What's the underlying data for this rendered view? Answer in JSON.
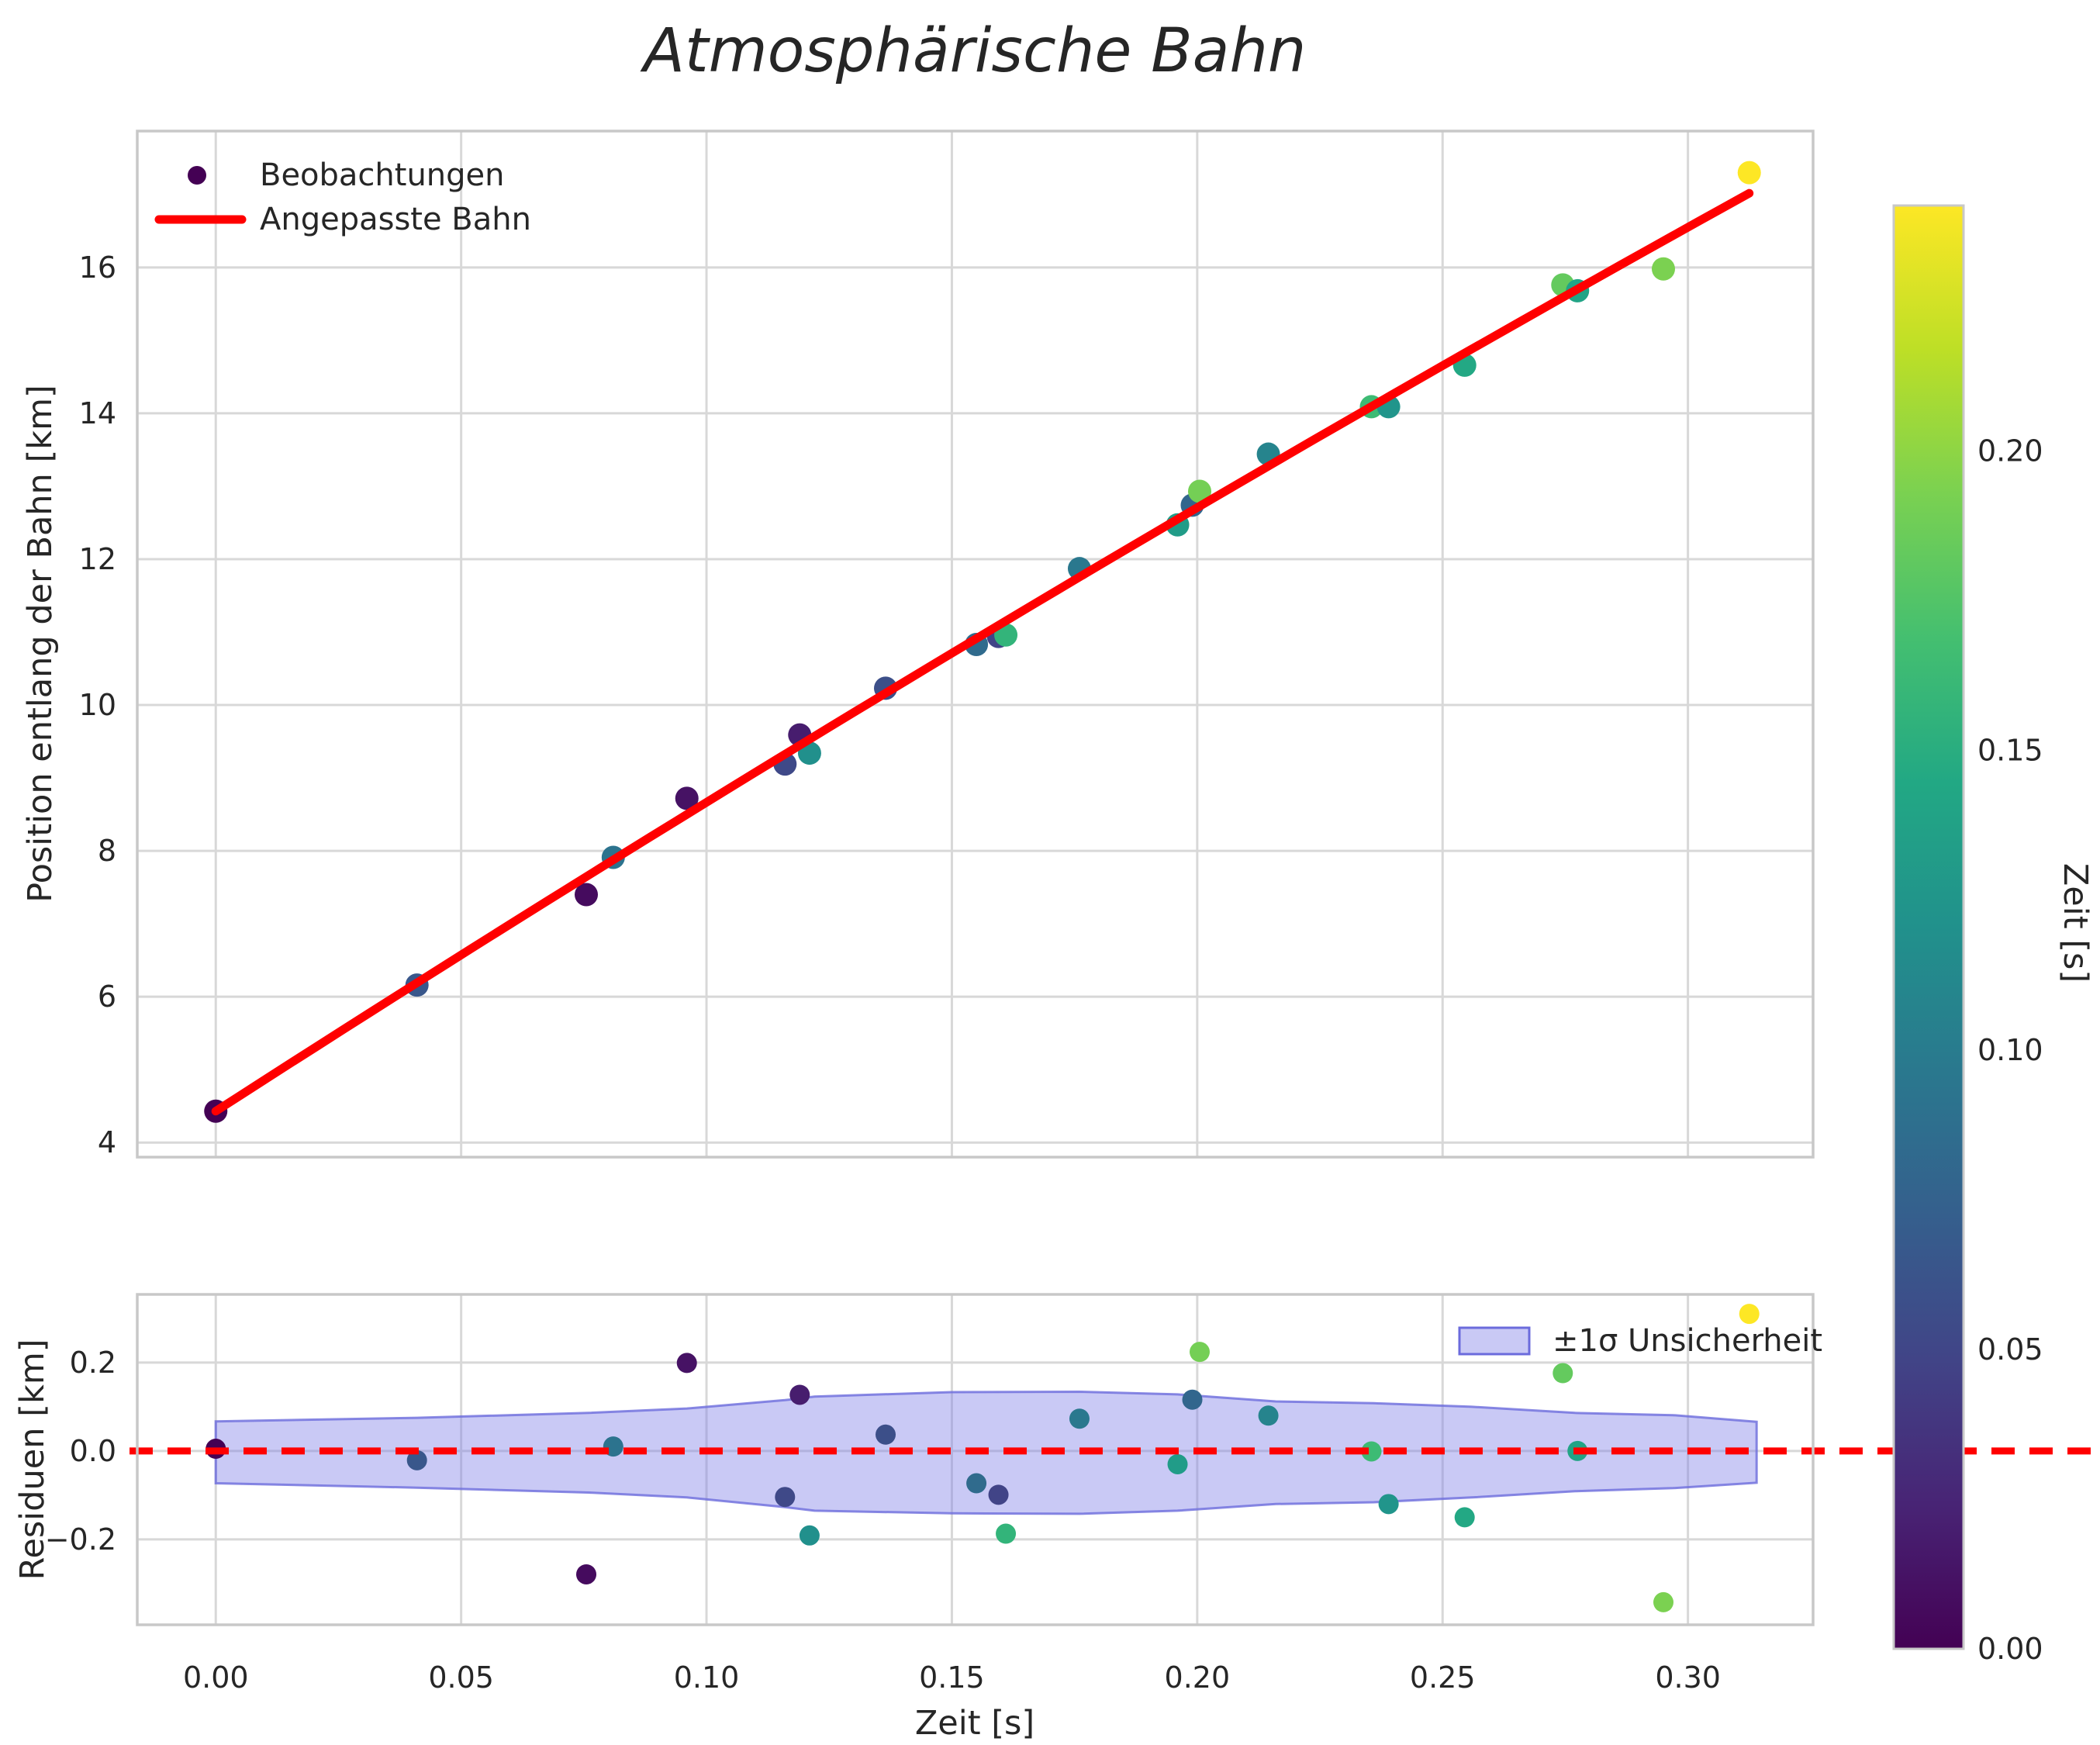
{
  "chart_data": {
    "type": "scatter",
    "title": "Atmosphärische Bahn",
    "colors": {
      "fit_line": "#ff0000",
      "zero_line": "#ff0000",
      "band_fill": "#7f7fe8",
      "band_edge": "#6b6bdc",
      "grid": "#d8d8d8",
      "spine": "#c8c8c8",
      "text": "#262626",
      "background": "#ffffff"
    },
    "viridis_stops": [
      [
        0.0,
        "#440154"
      ],
      [
        0.1,
        "#482475"
      ],
      [
        0.2,
        "#414487"
      ],
      [
        0.3,
        "#355f8d"
      ],
      [
        0.4,
        "#2a788e"
      ],
      [
        0.5,
        "#21918c"
      ],
      [
        0.6,
        "#22a884"
      ],
      [
        0.7,
        "#44bf70"
      ],
      [
        0.8,
        "#7ad151"
      ],
      [
        0.9,
        "#bddf26"
      ],
      [
        1.0,
        "#fde725"
      ]
    ],
    "main": {
      "ylabel": "Position entlang der Bahn [km]",
      "legend": {
        "observations": "Beobachtungen",
        "fit": "Angepasste Bahn"
      },
      "xlim": [
        -0.016,
        0.3255
      ],
      "ylim": [
        3.8,
        17.87
      ],
      "yticks": [
        4,
        6,
        8,
        10,
        12,
        14,
        16
      ],
      "fit": {
        "a": 4.43,
        "b": 43.33,
        "c": -9.76,
        "t_start": 0.0,
        "t_end": 0.3125
      }
    },
    "residuals": {
      "ylabel": "Residuen [km]",
      "xlabel": "Zeit [s]",
      "legend": "±1σ Unsicherheit",
      "ylim": [
        -0.393,
        0.354
      ],
      "yticks": [
        {
          "value": 0.2,
          "label": "0.2"
        },
        {
          "value": 0.0,
          "label": "0.0"
        },
        {
          "value": -0.2,
          "label": "−0.2"
        }
      ],
      "band": {
        "t": [
          0.0,
          0.041,
          0.076,
          0.096,
          0.116,
          0.122,
          0.15,
          0.176,
          0.196,
          0.216,
          0.236,
          0.256,
          0.277,
          0.297,
          0.314
        ],
        "upper": [
          0.067,
          0.075,
          0.086,
          0.096,
          0.115,
          0.123,
          0.133,
          0.134,
          0.128,
          0.112,
          0.108,
          0.1,
          0.086,
          0.081,
          0.066
        ],
        "lower": [
          -0.073,
          -0.083,
          -0.094,
          -0.105,
          -0.127,
          -0.135,
          -0.141,
          -0.142,
          -0.135,
          -0.12,
          -0.116,
          -0.105,
          -0.091,
          -0.084,
          -0.072
        ]
      }
    },
    "x_axis": {
      "grid_values": [
        0.0,
        0.05,
        0.1,
        0.15,
        0.2,
        0.25,
        0.3
      ],
      "ticks": [
        {
          "value": 0.0,
          "label": "0.00"
        },
        {
          "value": 0.05,
          "label": "0.05"
        },
        {
          "value": 0.1,
          "label": "0.10"
        },
        {
          "value": 0.15,
          "label": "0.15"
        },
        {
          "value": 0.2,
          "label": "0.20"
        },
        {
          "value": 0.25,
          "label": "0.25"
        },
        {
          "value": 0.3,
          "label": "0.30"
        }
      ]
    },
    "colorbar": {
      "label": "Zeit [s]",
      "vmin": 0.0,
      "vmax": 0.241,
      "ticks": [
        {
          "value": 0.0,
          "label": "0.00"
        },
        {
          "value": 0.05,
          "label": "0.05"
        },
        {
          "value": 0.1,
          "label": "0.10"
        },
        {
          "value": 0.15,
          "label": "0.15"
        },
        {
          "value": 0.2,
          "label": "0.20"
        }
      ]
    },
    "points": [
      {
        "t": 0.0,
        "y": 4.43,
        "residual": 0.005,
        "zeit_color": 0.0
      },
      {
        "t": 0.041,
        "y": 6.16,
        "residual": -0.021,
        "zeit_color": 0.065
      },
      {
        "t": 0.0755,
        "y": 7.4,
        "residual": -0.279,
        "zeit_color": 0.007
      },
      {
        "t": 0.081,
        "y": 7.91,
        "residual": 0.01,
        "zeit_color": 0.092
      },
      {
        "t": 0.096,
        "y": 8.72,
        "residual": 0.199,
        "zeit_color": 0.012
      },
      {
        "t": 0.116,
        "y": 9.19,
        "residual": -0.104,
        "zeit_color": 0.053
      },
      {
        "t": 0.119,
        "y": 9.59,
        "residual": 0.127,
        "zeit_color": 0.019
      },
      {
        "t": 0.121,
        "y": 9.34,
        "residual": -0.191,
        "zeit_color": 0.12
      },
      {
        "t": 0.1365,
        "y": 10.23,
        "residual": 0.037,
        "zeit_color": 0.058
      },
      {
        "t": 0.155,
        "y": 10.83,
        "residual": -0.073,
        "zeit_color": 0.084
      },
      {
        "t": 0.1595,
        "y": 10.94,
        "residual": -0.099,
        "zeit_color": 0.048
      },
      {
        "t": 0.161,
        "y": 10.96,
        "residual": -0.187,
        "zeit_color": 0.157
      },
      {
        "t": 0.176,
        "y": 11.87,
        "residual": 0.073,
        "zeit_color": 0.096
      },
      {
        "t": 0.196,
        "y": 12.47,
        "residual": -0.03,
        "zeit_color": 0.132
      },
      {
        "t": 0.199,
        "y": 12.74,
        "residual": 0.116,
        "zeit_color": 0.079
      },
      {
        "t": 0.2005,
        "y": 12.93,
        "residual": 0.224,
        "zeit_color": 0.19
      },
      {
        "t": 0.2145,
        "y": 13.44,
        "residual": 0.08,
        "zeit_color": 0.108
      },
      {
        "t": 0.2355,
        "y": 14.09,
        "residual": -0.001,
        "zeit_color": 0.164
      },
      {
        "t": 0.239,
        "y": 14.09,
        "residual": -0.12,
        "zeit_color": 0.125
      },
      {
        "t": 0.2545,
        "y": 14.66,
        "residual": -0.15,
        "zeit_color": 0.145
      },
      {
        "t": 0.2745,
        "y": 15.76,
        "residual": 0.176,
        "zeit_color": 0.183
      },
      {
        "t": 0.2775,
        "y": 15.68,
        "residual": 0.0,
        "zeit_color": 0.14
      },
      {
        "t": 0.295,
        "y": 15.98,
        "residual": -0.342,
        "zeit_color": 0.193
      },
      {
        "t": 0.3125,
        "y": 17.3,
        "residual": 0.31,
        "zeit_color": 0.241
      }
    ]
  }
}
